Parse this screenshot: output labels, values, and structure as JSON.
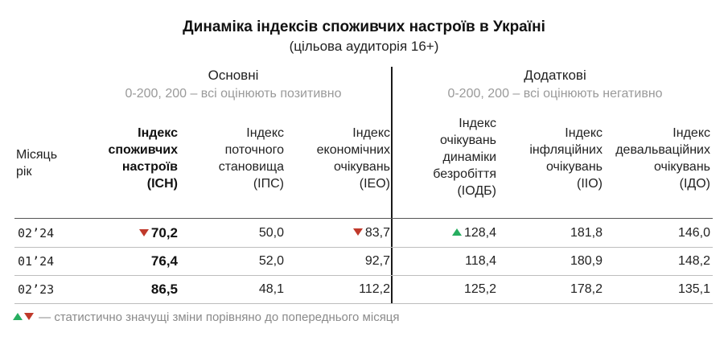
{
  "chart_data": {
    "type": "table",
    "title": "Динаміка індексів споживчих настроїв в Україні",
    "subtitle": "(цільова аудиторія 16+)",
    "groups": [
      {
        "label": "Основні",
        "note": "0-200, 200 – всі оцінюють позитивно"
      },
      {
        "label": "Додаткові",
        "note": "0-200, 200 – всі оцінюють негативно"
      }
    ],
    "row_header": [
      "Місяць",
      "рік"
    ],
    "columns": [
      {
        "lines": [
          "Індекс",
          "споживчих",
          "настроїв",
          "(ІСН)"
        ],
        "bold": true
      },
      {
        "lines": [
          "Індекс",
          "поточного",
          "становища",
          "(ІПС)"
        ],
        "bold": false
      },
      {
        "lines": [
          "Індекс",
          "економічних",
          "очікувань",
          "(ІЕО)"
        ],
        "bold": false
      },
      {
        "lines": [
          "Індекс",
          "очікувань",
          "динаміки",
          "безробіття",
          "(ІОДБ)"
        ],
        "bold": false
      },
      {
        "lines": [
          "Індекс",
          "інфляційних",
          "очікувань",
          "(ІІО)"
        ],
        "bold": false
      },
      {
        "lines": [
          "Індекс",
          "девальваційних",
          "очікувань",
          "(ІДО)"
        ],
        "bold": false
      }
    ],
    "rows": [
      {
        "month": "02’24",
        "values": [
          "70,2",
          "50,0",
          "83,7",
          "128,4",
          "181,8",
          "146,0"
        ],
        "changes": [
          "down",
          "",
          "down",
          "up",
          "",
          ""
        ]
      },
      {
        "month": "01’24",
        "values": [
          "76,4",
          "52,0",
          "92,7",
          "118,4",
          "180,9",
          "148,2"
        ],
        "changes": [
          "",
          "",
          "",
          "",
          "",
          ""
        ]
      },
      {
        "month": "02’23",
        "values": [
          "86,5",
          "48,1",
          "112,2",
          "125,2",
          "178,2",
          "135,1"
        ],
        "changes": [
          "",
          "",
          "",
          "",
          "",
          ""
        ]
      }
    ],
    "footnote": "— статистично значущі зміни порівняно до попереднього місяця",
    "colors": {
      "up": "#27ae60",
      "down": "#c0392b",
      "note": "#9a9a9a"
    }
  }
}
